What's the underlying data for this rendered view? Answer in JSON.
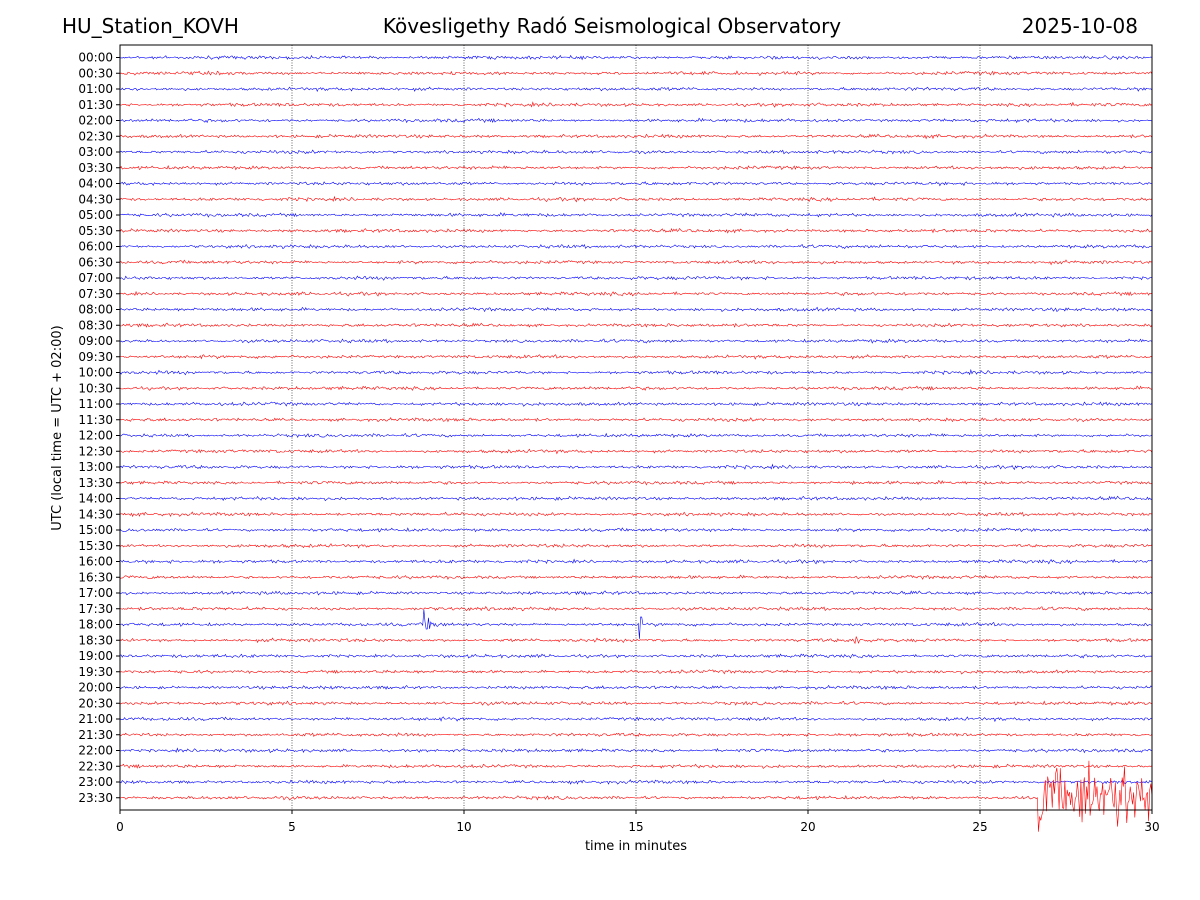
{
  "header": {
    "station": "HU_Station_KOVH",
    "title": "Kövesligethy Radó Seismological Observatory",
    "date": "2025-10-08"
  },
  "chart_data": {
    "type": "line",
    "title": "Kövesligethy Radó Seismological Observatory",
    "xlabel": "time in minutes",
    "ylabel": "UTC (local time = UTC + 02:00)",
    "xlim": [
      0,
      30
    ],
    "x_ticks": [
      0,
      5,
      10,
      15,
      20,
      25,
      30
    ],
    "vertical_gridlines": [
      5,
      10,
      15,
      20,
      25
    ],
    "trace_colors": [
      "#0000ff",
      "#ff0000"
    ],
    "rows": [
      "00:00",
      "00:30",
      "01:00",
      "01:30",
      "02:00",
      "02:30",
      "03:00",
      "03:30",
      "04:00",
      "04:30",
      "05:00",
      "05:30",
      "06:00",
      "06:30",
      "07:00",
      "07:30",
      "08:00",
      "08:30",
      "09:00",
      "09:30",
      "10:00",
      "10:30",
      "11:00",
      "11:30",
      "12:00",
      "12:30",
      "13:00",
      "13:30",
      "14:00",
      "14:30",
      "15:00",
      "15:30",
      "16:00",
      "16:30",
      "17:00",
      "17:30",
      "18:00",
      "18:30",
      "19:00",
      "19:30",
      "20:00",
      "20:30",
      "21:00",
      "21:30",
      "22:00",
      "22:30",
      "23:00",
      "23:30"
    ],
    "noise_amplitude": 1,
    "events": [
      {
        "row": "02:30",
        "start_min": 27.2,
        "duration_min": 0.3,
        "amplitude": 3
      },
      {
        "row": "13:30",
        "start_min": 21.3,
        "duration_min": 0.6,
        "amplitude": 2.5
      },
      {
        "row": "18:00",
        "start_min": 8.85,
        "duration_min": 1.2,
        "amplitude": 9
      },
      {
        "row": "18:00",
        "start_min": 15.1,
        "duration_min": 0.3,
        "amplitude": 10
      },
      {
        "row": "18:30",
        "start_min": 21.3,
        "duration_min": 1.0,
        "amplitude": 8
      },
      {
        "row": "23:30",
        "start_min": 26.7,
        "duration_min": 3.3,
        "amplitude": 30
      }
    ]
  }
}
